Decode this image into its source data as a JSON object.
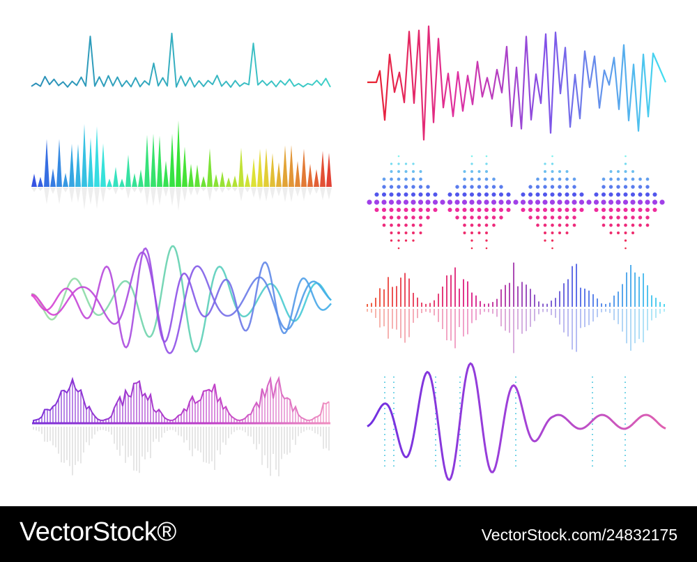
{
  "footer": {
    "brand": "VectorStock®",
    "id": "VectorStock.com/24832175"
  }
}
